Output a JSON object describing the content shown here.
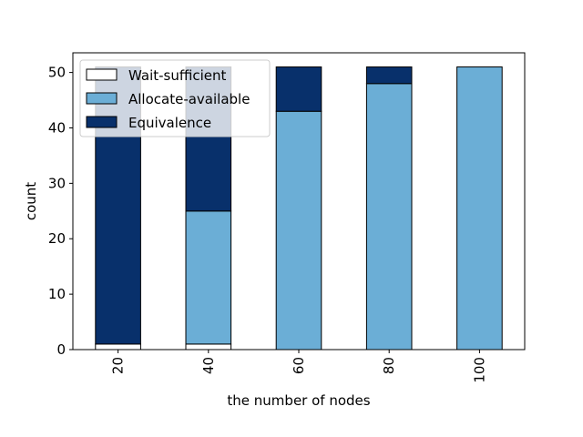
{
  "chart_data": {
    "type": "bar",
    "stacked": true,
    "categories": [
      "20",
      "40",
      "60",
      "80",
      "100"
    ],
    "series": [
      {
        "name": "Wait-sufficient",
        "values": [
          1,
          1,
          0,
          0,
          0
        ],
        "color": "#ffffff"
      },
      {
        "name": "Allocate-available",
        "values": [
          0,
          24,
          43,
          48,
          51
        ],
        "color": "#6baed6"
      },
      {
        "name": "Equivalence",
        "values": [
          50,
          26,
          8,
          3,
          0
        ],
        "color": "#08306b"
      }
    ],
    "xlabel": "the number of nodes",
    "ylabel": "count",
    "ylim": [
      0,
      53.55
    ],
    "yticks": [
      0,
      10,
      20,
      30,
      40,
      50
    ],
    "grid": false,
    "legend_position": "top-left",
    "x_tick_rotation": 90
  }
}
